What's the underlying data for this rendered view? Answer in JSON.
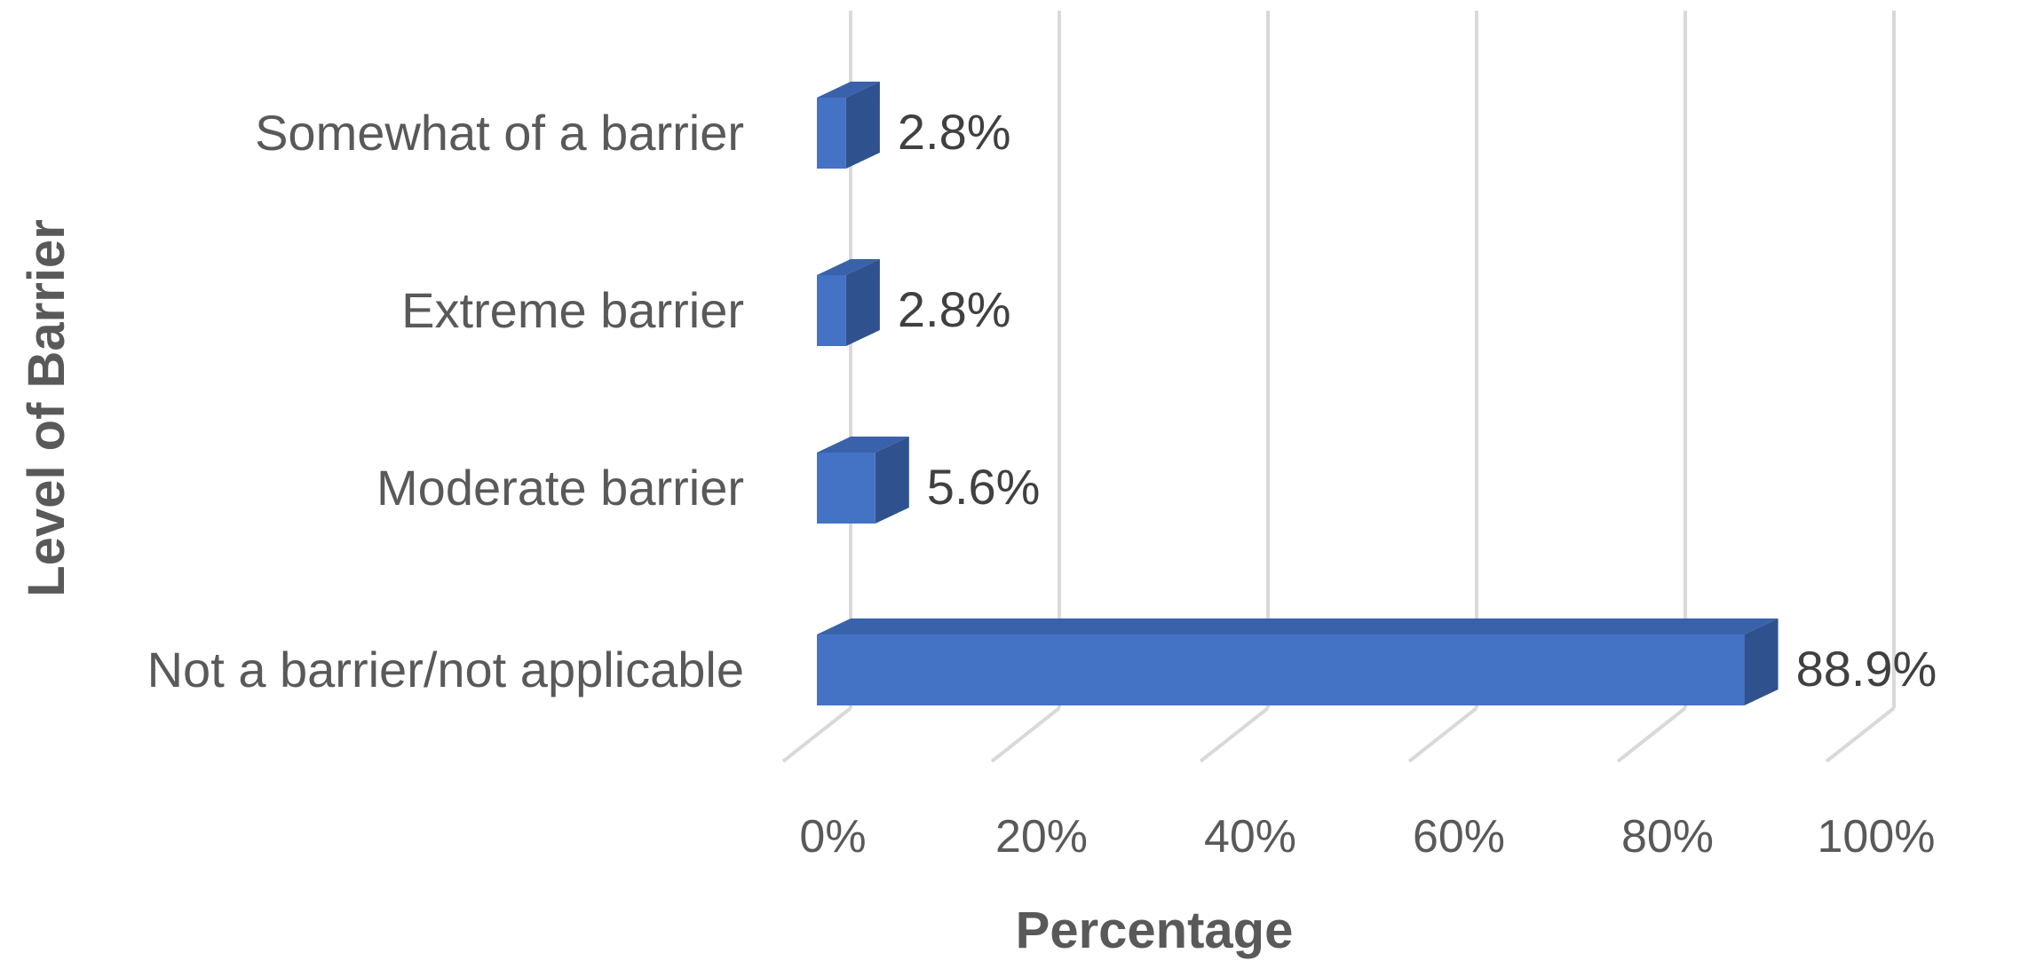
{
  "chart_data": {
    "type": "bar",
    "orientation": "horizontal",
    "style": "3d",
    "categories": [
      "Somewhat of a barrier",
      "Extreme barrier",
      "Moderate barrier",
      "Not a barrier/not applicable"
    ],
    "values": [
      2.8,
      2.8,
      5.6,
      88.9
    ],
    "data_labels": [
      "2.8%",
      "2.8%",
      "5.6%",
      "88.9%"
    ],
    "xlabel": "Percentage",
    "ylabel": "Level of Barrier",
    "xlim": [
      0,
      100
    ],
    "x_ticks": [
      0,
      20,
      40,
      60,
      80,
      100
    ],
    "x_tick_labels": [
      "0%",
      "20%",
      "40%",
      "60%",
      "80%",
      "100%"
    ],
    "grid": true,
    "legend": "none",
    "colors": {
      "bar_front": "#4472C4",
      "bar_side": "#2F528F",
      "bar_top": "#3A62AB",
      "grid": "#D9D9D9"
    }
  }
}
